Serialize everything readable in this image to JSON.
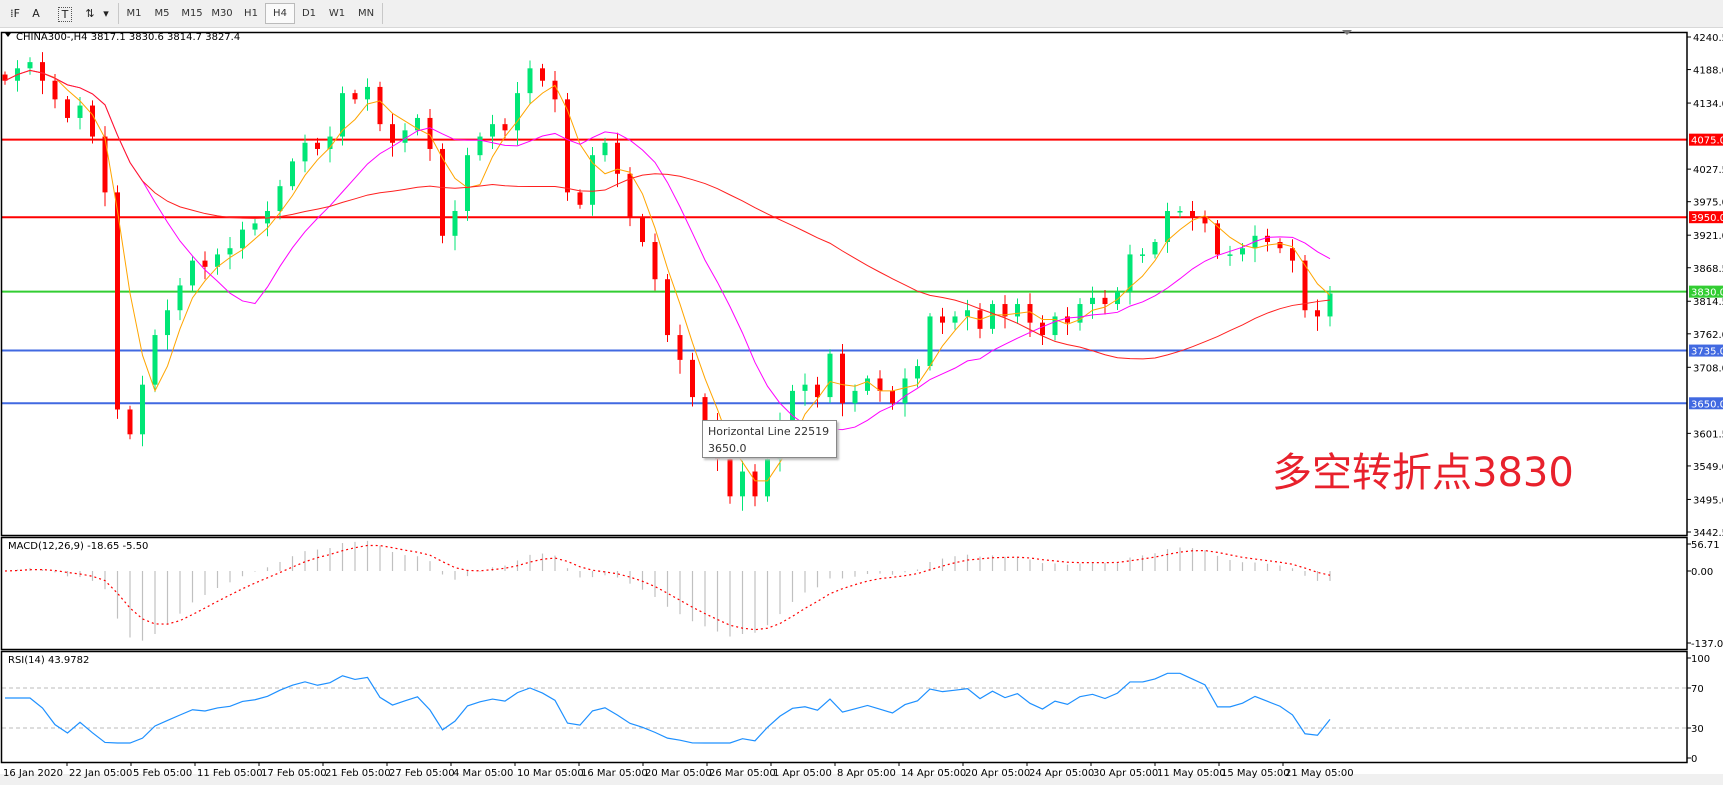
{
  "toolbar": {
    "tools": [
      {
        "name": "grid-fibo-icon",
        "glyph": "⁞F"
      },
      {
        "name": "text-tool-icon",
        "glyph": "A"
      },
      {
        "name": "text-label-icon",
        "glyph": "T"
      },
      {
        "name": "arrows-tool-icon",
        "glyph": "⇅"
      },
      {
        "name": "chevron-down-icon",
        "glyph": "▾"
      }
    ],
    "timeframes": [
      "M1",
      "M5",
      "M15",
      "M30",
      "H1",
      "H4",
      "D1",
      "W1",
      "MN"
    ],
    "active_timeframe": "H4"
  },
  "chart": {
    "header": "CHINA300-,H4  3817.1 3830.6 3814.7 3827.4",
    "price_ticks": [
      "4240.5",
      "4188.0",
      "4134.0",
      "4027.5",
      "3975.0",
      "3921.0",
      "3868.5",
      "3814.5",
      "3762.0",
      "3708.0",
      "3601.5",
      "3549.0",
      "3495.0",
      "3442.5"
    ],
    "date_labels": [
      "16 Jan 2020",
      "22 Jan 05:00",
      "5 Feb 05:00",
      "11 Feb 05:00",
      "17 Feb 05:00",
      "21 Feb 05:00",
      "27 Feb 05:00",
      "4 Mar 05:00",
      "10 Mar 05:00",
      "16 Mar 05:00",
      "20 Mar 05:00",
      "26 Mar 05:00",
      "1 Apr 05:00",
      "8 Apr 05:00",
      "14 Apr 05:00",
      "20 Apr 05:00",
      "24 Apr 05:00",
      "30 Apr 05:00",
      "11 May 05:00",
      "15 May 05:00",
      "21 May 05:00"
    ],
    "horizontal_lines": [
      {
        "price": "4075.0",
        "color": "#ff0000"
      },
      {
        "price": "3950.0",
        "color": "#ff0000"
      },
      {
        "price": "3830.0",
        "color": "#32cd32"
      },
      {
        "price": "3735.0",
        "color": "#4169e1"
      },
      {
        "price": "3650.0",
        "color": "#4169e1"
      }
    ],
    "tooltip": {
      "title": "Horizontal Line 22519",
      "value": "3650.0"
    },
    "annotation": "多空转折点3830",
    "colors": {
      "bull": "#00e676",
      "bear": "#ff0000",
      "ma_fast": "#ffa500",
      "ma_mid": "#ff00ff",
      "ma_slow": "#ff2020",
      "rsi": "#1e90ff",
      "macd_hist": "#c0c0c0",
      "macd_signal": "#ff0000"
    }
  },
  "macd": {
    "label": "MACD(12,26,9) -18.65 -5.50",
    "ticks": [
      "56.71",
      "0.00",
      "-137.01"
    ]
  },
  "rsi": {
    "label": "RSI(14) 43.9782",
    "ticks": [
      "100",
      "70",
      "30",
      "0"
    ]
  },
  "chart_data": {
    "type": "candlestick",
    "symbol": "CHINA300-",
    "timeframe": "H4",
    "last_ohlc": {
      "open": 3817.1,
      "high": 3830.6,
      "low": 3814.7,
      "close": 3827.4
    },
    "ylim": [
      3442.5,
      4240.5
    ],
    "approx_closes": [
      4170,
      4190,
      4200,
      4170,
      4140,
      4110,
      4130,
      4080,
      3990,
      3640,
      3600,
      3680,
      3760,
      3800,
      3840,
      3880,
      3870,
      3890,
      3900,
      3930,
      3940,
      3960,
      4000,
      4040,
      4070,
      4060,
      4080,
      4150,
      4140,
      4160,
      4100,
      4070,
      4090,
      4110,
      4060,
      3920,
      3960,
      4050,
      4080,
      4100,
      4090,
      4150,
      4190,
      4170,
      4140,
      3990,
      3970,
      4050,
      4070,
      4020,
      3950,
      3910,
      3850,
      3760,
      3720,
      3660,
      3620,
      3560,
      3500,
      3540,
      3500,
      3560,
      3620,
      3670,
      3680,
      3660,
      3730,
      3650,
      3670,
      3690,
      3670,
      3650,
      3690,
      3710,
      3790,
      3780,
      3790,
      3800,
      3770,
      3810,
      3790,
      3810,
      3780,
      3760,
      3790,
      3780,
      3810,
      3820,
      3810,
      3830,
      3890,
      3890,
      3910,
      3960,
      3960,
      3950,
      3940,
      3890,
      3890,
      3900,
      3920,
      3910,
      3900,
      3880,
      3800,
      3790,
      3827
    ],
    "indicators": [
      "MACD(12,26,9)",
      "RSI(14)"
    ],
    "rsi_levels": [
      30,
      70
    ],
    "macd_ylim": [
      -137.01,
      56.71
    ],
    "grid": false
  }
}
